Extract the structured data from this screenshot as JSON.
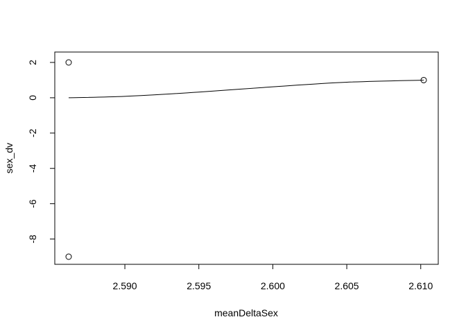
{
  "chart_data": {
    "type": "scatter",
    "title": "",
    "xlabel": "meanDeltaSex",
    "ylabel": "sex_dv",
    "xlim": [
      2.5862,
      2.6102
    ],
    "ylim": [
      -9.0,
      2.0
    ],
    "x_ticks": [
      2.59,
      2.595,
      2.6,
      2.605,
      2.61
    ],
    "x_tick_labels": [
      "2.590",
      "2.595",
      "2.600",
      "2.605",
      "2.610"
    ],
    "y_ticks": [
      -8,
      -6,
      -4,
      -2,
      0,
      2
    ],
    "y_tick_labels": [
      "-8",
      "-6",
      "-4",
      "-2",
      "0",
      "2"
    ],
    "grid": false,
    "legend": "none",
    "series": [
      {
        "kind": "points",
        "marker": "open-circle",
        "x": [
          2.5862,
          2.5862,
          2.6102
        ],
        "y": [
          2,
          -9,
          1
        ]
      },
      {
        "kind": "line",
        "x": [
          2.5862,
          2.59,
          2.595,
          2.6,
          2.605,
          2.6102
        ],
        "y": [
          0.0,
          0.08,
          0.32,
          0.62,
          0.88,
          1.0
        ]
      }
    ],
    "colors": {
      "ink": "#000000",
      "background": "#ffffff"
    }
  }
}
